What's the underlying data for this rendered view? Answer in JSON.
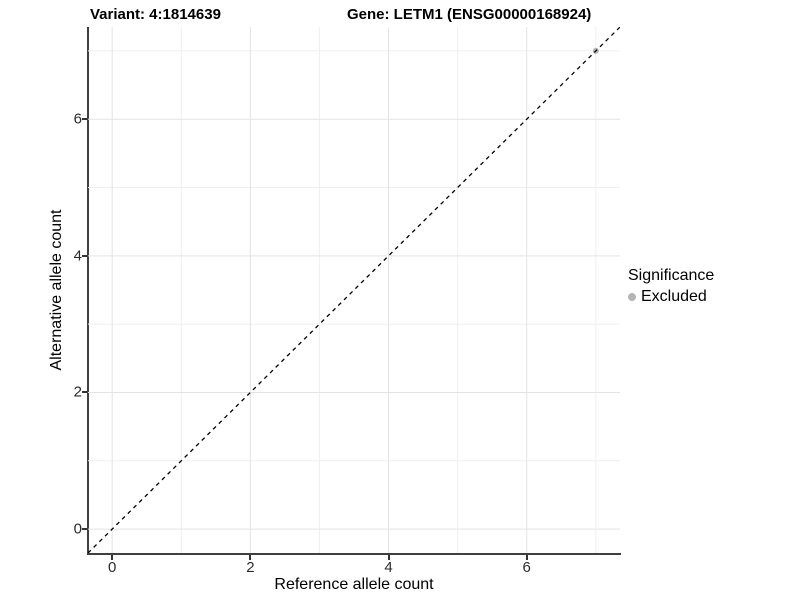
{
  "titles": {
    "variant": "Variant: 4:1814639",
    "gene": "Gene: LETM1 (ENSG00000168924)"
  },
  "axes": {
    "x_label": "Reference allele count",
    "y_label": "Alternative allele count",
    "x_major_ticks": [
      0,
      2,
      4,
      6
    ],
    "y_major_ticks": [
      0,
      2,
      4,
      6
    ],
    "x_minor_ticks": [
      1,
      3,
      5,
      7
    ],
    "y_minor_ticks": [
      1,
      3,
      5,
      7
    ],
    "xlim": [
      -0.35,
      7.35
    ],
    "ylim": [
      -0.35,
      7.35
    ]
  },
  "legend": {
    "title": "Significance",
    "items": [
      {
        "label": "Excluded",
        "color": "#b4b4b4"
      }
    ]
  },
  "colors": {
    "axis_line": "#404040",
    "tick": "#333333",
    "major_grid": "#e3e3e3",
    "minor_grid": "#efefef",
    "identity_line": "#000000",
    "point_excluded": "#b4b4b4",
    "background": "#ffffff"
  },
  "chart_data": {
    "type": "scatter",
    "title": "Variant: 4:1814639 | Gene: LETM1 (ENSG00000168924)",
    "xlabel": "Reference allele count",
    "ylabel": "Alternative allele count",
    "xlim": [
      -0.35,
      7.35
    ],
    "ylim": [
      -0.35,
      7.35
    ],
    "x_ticks": [
      0,
      2,
      4,
      6
    ],
    "y_ticks": [
      0,
      2,
      4,
      6
    ],
    "grid": true,
    "legend_position": "right",
    "series": [
      {
        "name": "Excluded",
        "color": "#b4b4b4",
        "points": [
          {
            "x": 7,
            "y": 7
          }
        ]
      }
    ],
    "reference_line": {
      "kind": "identity",
      "equation": "y = x",
      "style": "dashed",
      "color": "#000000",
      "from": {
        "x": -0.35,
        "y": -0.35
      },
      "to": {
        "x": 7.35,
        "y": 7.35
      }
    }
  }
}
